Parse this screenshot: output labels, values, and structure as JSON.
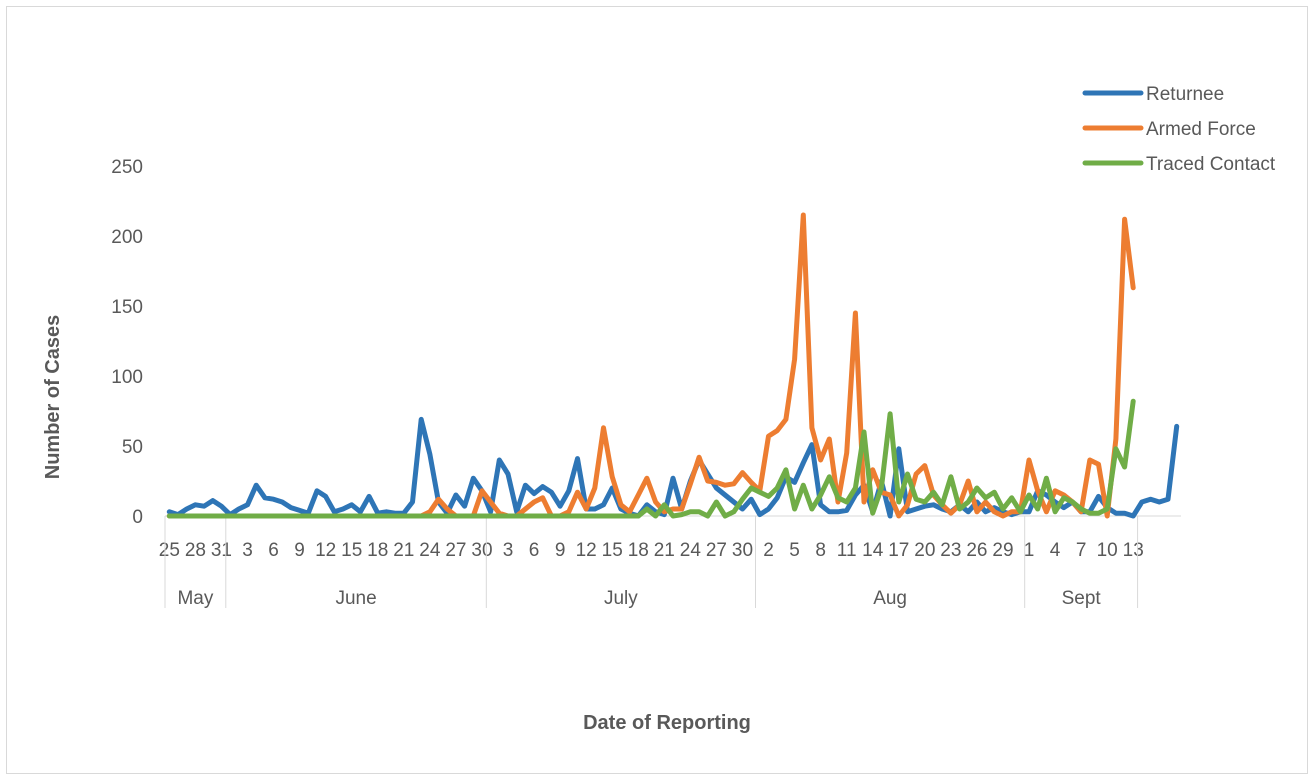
{
  "chart_data": {
    "type": "line",
    "xlabel": "Date of Reporting",
    "ylabel": "Number of Cases",
    "ylim": [
      0,
      250
    ],
    "yticks": [
      0,
      50,
      100,
      150,
      200,
      250
    ],
    "grid": false,
    "legend_position": "top-right",
    "months": [
      {
        "label": "May",
        "start": "2020-05-25",
        "end": "2020-05-31"
      },
      {
        "label": "June",
        "start": "2020-06-01",
        "end": "2020-06-30"
      },
      {
        "label": "July",
        "start": "2020-07-01",
        "end": "2020-07-31"
      },
      {
        "label": "Aug",
        "start": "2020-08-01",
        "end": "2020-08-31"
      },
      {
        "label": "Sept",
        "start": "2020-09-01",
        "end": "2020-09-13"
      }
    ],
    "x_tick_labels": [
      "25",
      "28",
      "31",
      "3",
      "6",
      "9",
      "12",
      "15",
      "18",
      "21",
      "24",
      "27",
      "30",
      "3",
      "6",
      "9",
      "12",
      "15",
      "18",
      "21",
      "24",
      "27",
      "30",
      "2",
      "5",
      "8",
      "11",
      "14",
      "17",
      "20",
      "23",
      "26",
      "29",
      "1",
      "4",
      "7",
      "10",
      "13"
    ],
    "series": [
      {
        "name": "Returnee",
        "color": "#2e75b6",
        "values": [
          3,
          1,
          5,
          8,
          7,
          11,
          7,
          1,
          5,
          8,
          22,
          13,
          12,
          10,
          6,
          4,
          2,
          18,
          14,
          3,
          5,
          8,
          3,
          14,
          2,
          3,
          2,
          2,
          10,
          69,
          44,
          10,
          2,
          15,
          7,
          27,
          18,
          3,
          40,
          30,
          3,
          22,
          16,
          21,
          17,
          7,
          18,
          41,
          5,
          5,
          8,
          20,
          5,
          2,
          0,
          8,
          3,
          1,
          27,
          5,
          25,
          40,
          30,
          20,
          15,
          10,
          5,
          12,
          1,
          5,
          13,
          28,
          24,
          38,
          51,
          8,
          3,
          3,
          4,
          15,
          22,
          3,
          25,
          0,
          48,
          3,
          5,
          7,
          8,
          5,
          3,
          8,
          3,
          10,
          3,
          6,
          3,
          1,
          3,
          3,
          18,
          15,
          10,
          6,
          10,
          3,
          3,
          14,
          6,
          2,
          2,
          0,
          10,
          12,
          10,
          12,
          64
        ]
      },
      {
        "name": "Armed Force",
        "color": "#ed7d31",
        "values": [
          0,
          0,
          0,
          0,
          0,
          0,
          0,
          0,
          0,
          0,
          0,
          0,
          0,
          0,
          0,
          0,
          0,
          0,
          0,
          0,
          0,
          0,
          0,
          0,
          0,
          0,
          0,
          0,
          0,
          0,
          3,
          12,
          5,
          0,
          0,
          0,
          18,
          10,
          2,
          0,
          0,
          5,
          10,
          13,
          0,
          0,
          3,
          17,
          5,
          20,
          63,
          28,
          8,
          3,
          15,
          27,
          10,
          3,
          5,
          5,
          23,
          42,
          25,
          24,
          22,
          23,
          31,
          24,
          18,
          57,
          61,
          69,
          112,
          215,
          63,
          40,
          55,
          10,
          45,
          145,
          10,
          33,
          17,
          15,
          0,
          8,
          30,
          36,
          15,
          8,
          2,
          8,
          25,
          3,
          10,
          3,
          0,
          3,
          3,
          40,
          18,
          3,
          18,
          15,
          10,
          3,
          40,
          37,
          0,
          55,
          212,
          163
        ]
      },
      {
        "name": "Traced Contact",
        "color": "#70ad47",
        "values": [
          0,
          0,
          0,
          0,
          0,
          0,
          0,
          0,
          0,
          0,
          0,
          0,
          0,
          0,
          0,
          0,
          0,
          0,
          0,
          0,
          0,
          0,
          0,
          0,
          0,
          0,
          0,
          0,
          0,
          0,
          0,
          0,
          0,
          0,
          0,
          0,
          0,
          0,
          0,
          0,
          0,
          0,
          0,
          0,
          0,
          0,
          0,
          0,
          0,
          0,
          0,
          0,
          0,
          0,
          0,
          5,
          0,
          8,
          0,
          1,
          3,
          3,
          0,
          10,
          0,
          3,
          12,
          20,
          17,
          14,
          20,
          33,
          5,
          22,
          5,
          15,
          28,
          13,
          10,
          20,
          60,
          2,
          20,
          73,
          10,
          30,
          12,
          10,
          17,
          8,
          28,
          5,
          10,
          20,
          13,
          17,
          5,
          13,
          3,
          15,
          5,
          27,
          3,
          13,
          10,
          5,
          2,
          2,
          5,
          48,
          35,
          82
        ]
      }
    ]
  }
}
